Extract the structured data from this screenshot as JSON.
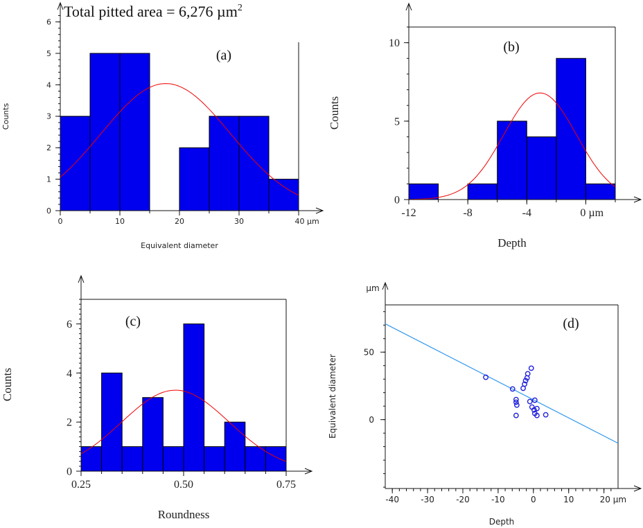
{
  "figure_title": "Total pitted area = 6,276 µm",
  "figure_title_sup": "2",
  "chart_data": [
    {
      "id": "a",
      "type": "bar",
      "panel_label": "(a)",
      "xlabel": "Equivalent diameter",
      "ylabel": "Counts",
      "x_unit": "µm",
      "bin_edges": [
        0,
        5,
        10,
        15,
        20,
        25,
        30,
        35,
        40
      ],
      "values": [
        3,
        5,
        5,
        0,
        2,
        3,
        3,
        1
      ],
      "xlim": [
        0,
        40
      ],
      "ylim": [
        0,
        6.3
      ],
      "xticks": [
        0,
        10,
        20,
        30,
        40
      ],
      "xtick_labels": [
        "0",
        "10",
        "20",
        "30",
        "40 µm"
      ],
      "yticks": [
        0,
        1,
        2,
        3,
        4,
        5,
        6
      ],
      "ytick_labels": [
        "0",
        "1",
        "2",
        "3",
        "4",
        "5",
        "6"
      ],
      "fit": {
        "type": "normal",
        "amplitude": 4.04,
        "mean": 17.7,
        "sd": 10.85
      },
      "bar_color": "#0000ee",
      "fit_color": "#ee0000"
    },
    {
      "id": "b",
      "type": "bar",
      "panel_label": "(b)",
      "xlabel": "Depth",
      "ylabel": "Counts",
      "x_unit": "µm",
      "bin_edges": [
        -12,
        -10,
        -8,
        -6,
        -4,
        -2,
        0,
        2
      ],
      "values": [
        1,
        0,
        1,
        5,
        4,
        9,
        1
      ],
      "xlim": [
        -12,
        2
      ],
      "ylim": [
        0,
        11
      ],
      "xticks": [
        -12,
        -8,
        -4,
        0
      ],
      "xtick_labels": [
        "-12",
        "-8",
        "-4",
        "0 µm"
      ],
      "yticks": [
        0,
        5,
        10
      ],
      "ytick_labels": [
        "0",
        "5",
        "10"
      ],
      "fit": {
        "type": "normal",
        "amplitude": 6.8,
        "mean": -3.1,
        "sd": 2.47
      },
      "bar_color": "#0000ee",
      "fit_color": "#ee0000"
    },
    {
      "id": "c",
      "type": "bar",
      "panel_label": "(c)",
      "xlabel": "Roundness",
      "ylabel": "Counts",
      "bin_edges": [
        0.25,
        0.3,
        0.35,
        0.4,
        0.45,
        0.5,
        0.55,
        0.6,
        0.65,
        0.7,
        0.75
      ],
      "values": [
        1,
        4,
        1,
        3,
        1,
        6,
        1,
        2,
        1,
        1
      ],
      "xlim": [
        0.25,
        0.75
      ],
      "ylim": [
        0,
        7
      ],
      "xticks": [
        0.25,
        0.5,
        0.75
      ],
      "xtick_labels": [
        "0.25",
        "0.50",
        "0.75"
      ],
      "yticks": [
        0,
        2,
        4,
        6
      ],
      "ytick_labels": [
        "0",
        "2",
        "4",
        "6"
      ],
      "fit": {
        "type": "normal",
        "amplitude": 3.3,
        "mean": 0.48,
        "sd": 0.131
      },
      "bar_color": "#0000ee",
      "fit_color": "#ee0000"
    },
    {
      "id": "d",
      "type": "scatter",
      "panel_label": "(d)",
      "xlabel": "Depth",
      "ylabel": "Equivalent diameter",
      "x_unit": "µm",
      "y_unit": "µm",
      "xlim": [
        -42,
        24
      ],
      "ylim": [
        -51,
        85
      ],
      "xticks": [
        -40,
        -30,
        -20,
        -10,
        0,
        10,
        20
      ],
      "xtick_labels": [
        "-40",
        "-30",
        "-20",
        "-10",
        "0",
        "10",
        "20 µm"
      ],
      "yticks": [
        0,
        50
      ],
      "ytick_labels": [
        "0",
        "50"
      ],
      "points": [
        [
          -13.5,
          31.4
        ],
        [
          -5.9,
          22.7
        ],
        [
          -0.6,
          38.1
        ],
        [
          -1.6,
          34.0
        ],
        [
          -1.8,
          30.9
        ],
        [
          -2.2,
          28.9
        ],
        [
          -2.5,
          26.3
        ],
        [
          -2.9,
          23.2
        ],
        [
          -4.9,
          14.9
        ],
        [
          -4.9,
          12.9
        ],
        [
          -4.7,
          10.8
        ],
        [
          -4.9,
          3.1
        ],
        [
          -1.0,
          13.4
        ],
        [
          0.4,
          14.4
        ],
        [
          -0.4,
          9.3
        ],
        [
          0.2,
          7.2
        ],
        [
          1.0,
          8.2
        ],
        [
          0.4,
          4.6
        ],
        [
          1.0,
          3.1
        ],
        [
          3.5,
          3.6
        ]
      ],
      "regression": {
        "slope": -1.34,
        "intercept": 14.7
      },
      "point_color": "#2020dd",
      "line_color": "#3399ee"
    }
  ]
}
